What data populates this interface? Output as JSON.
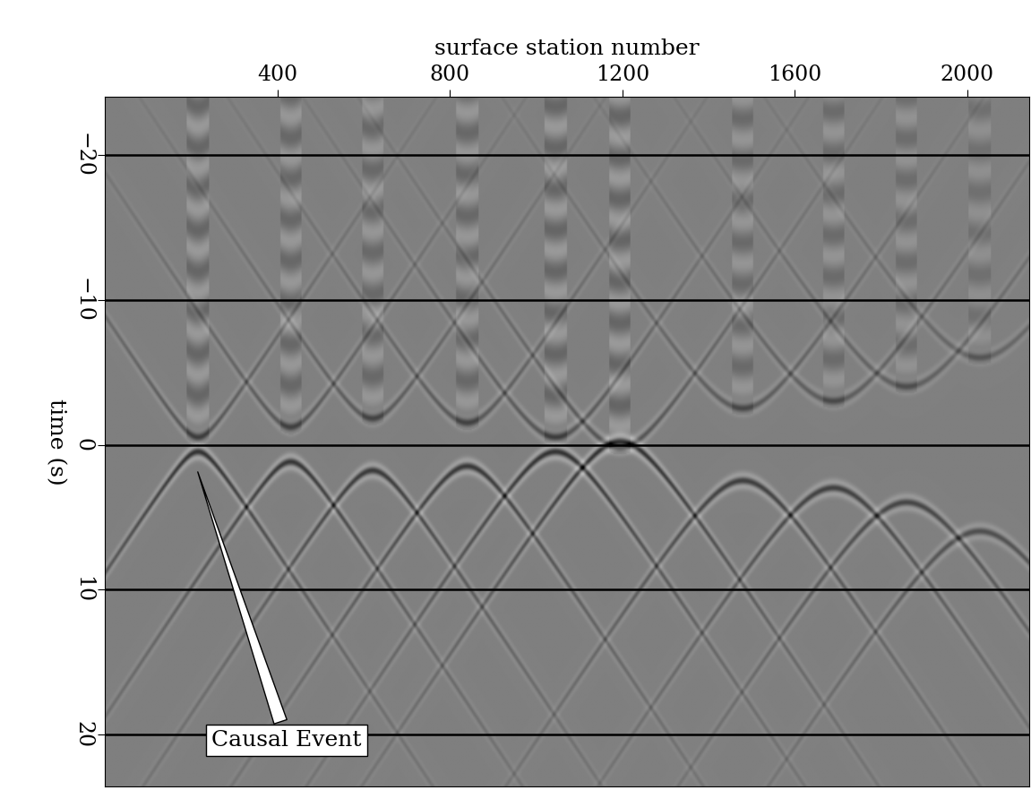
{
  "chart_data": {
    "type": "image",
    "xlabel": "surface station number",
    "ylabel": "time (s)",
    "xlim": [
      0,
      2143
    ],
    "ylim": [
      23.6,
      -24
    ],
    "xticks": [
      400,
      800,
      1200,
      1600,
      2000
    ],
    "yticks": [
      {
        "value": -20,
        "label": "−20"
      },
      {
        "value": -10,
        "label": "−10"
      },
      0,
      10,
      20
    ],
    "grid": "y",
    "color": "#000000",
    "moveout_s_per_station": 0.045,
    "events": [
      {
        "station": 215,
        "time": 0.5
      },
      {
        "station": 430,
        "time": 1.2
      },
      {
        "station": 620,
        "time": 1.8
      },
      {
        "station": 840,
        "time": 1.5
      },
      {
        "station": 1045,
        "time": 0.5
      },
      {
        "station": 1195,
        "time": -0.2
      },
      {
        "station": 1480,
        "time": 2.5
      },
      {
        "station": 1690,
        "time": 3.0
      },
      {
        "station": 1860,
        "time": 4.0
      },
      {
        "station": 2030,
        "time": 6.0
      }
    ],
    "annotation": {
      "text": "Causal Event",
      "station": 213,
      "time": 1.7,
      "text_station": 421,
      "text_time": 20.4
    }
  }
}
